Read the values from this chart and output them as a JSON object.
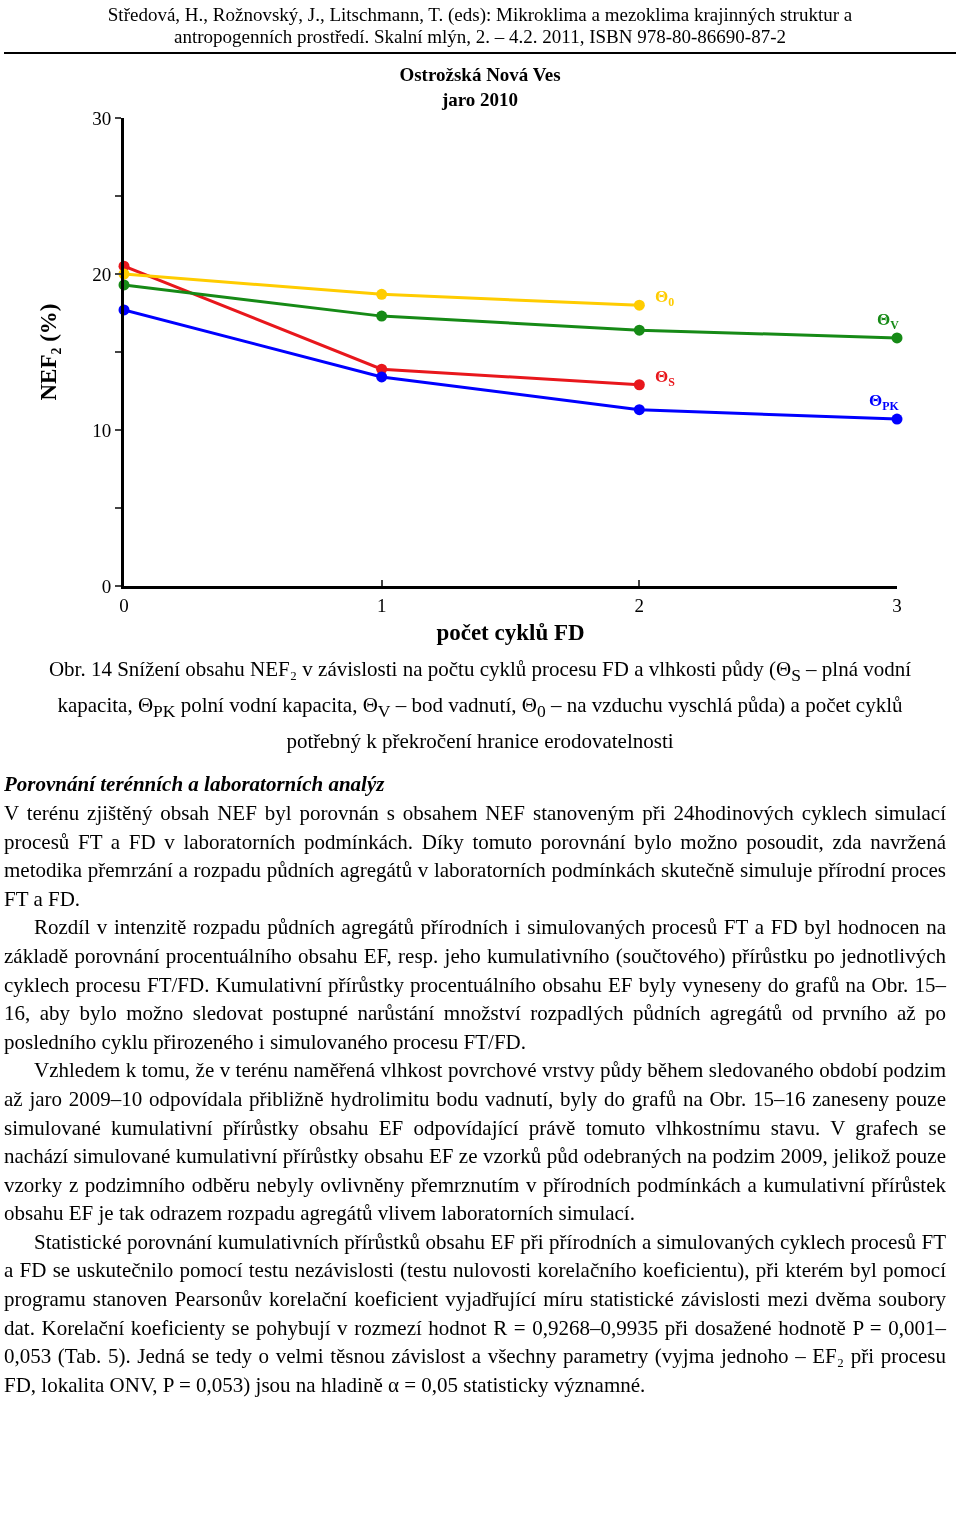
{
  "chart_data": {
    "type": "line",
    "title": "Ostrožská Nová Ves",
    "subtitle": "jaro 2010",
    "xlabel": "počet cyklů FD",
    "ylabel": "NEF₂ (%)",
    "x": [
      0,
      1,
      2,
      3
    ],
    "xlim": [
      0,
      3
    ],
    "xticks": [
      0,
      1,
      2,
      3
    ],
    "ylim": [
      0,
      30
    ],
    "yticks": [
      0,
      {
        "value": 5,
        "label": null
      },
      10,
      {
        "value": 15,
        "label": null
      },
      20,
      {
        "value": 25,
        "label": null
      },
      30
    ],
    "grid": false,
    "legend": false,
    "marker": "circle",
    "line_style": "solid",
    "series": [
      {
        "name": "Θ$_{S}$",
        "color": "#e8171c",
        "values": [
          20.5,
          13.9,
          12.9,
          null
        ]
      },
      {
        "name": "Θ$_{0}$",
        "color": "#ffcc00",
        "values": [
          20.0,
          18.7,
          18.0,
          null
        ]
      },
      {
        "name": "Θ$_{V}$",
        "color": "#168a16",
        "values": [
          19.3,
          17.3,
          16.4,
          15.9
        ]
      },
      {
        "name": "Θ$_{PK}$",
        "color": "#0000ff",
        "values": [
          17.7,
          13.4,
          11.3,
          10.7
        ]
      }
    ],
    "annotations": [
      "Středová, H., Rožnovský, J., Litschmann, T. (eds): Mikroklima a mezoklima krajinných struktur a antropogenních prostředí. Skalní mlýn, 2. – 4.2. 2011, ISBN 978-80-86690-87-2",
      "Obr. 14 Snížení obsahu NEF₂ v závislosti na počtu cyklů procesu FD a vlhkosti půdy (Θ$_{S}$ – plná vodní kapacita, Θ$_{PK}$ polní vodní kapacita, Θ$_{V}$ – bod vadnutí, Θ$_{0}$ – na vzduchu vyschlá půda) a počet cyklů potřebný k překročení hranice erodovatelnosti",
      "Porovnání terénních a laboratorních analýz",
      "V terénu zjištěný obsah NEF byl porovnán s obsahem NEF stanoveným při 24hodinových cyklech simulací procesů FT a FD v laboratorních podmínkách. Díky tomuto porovnání bylo možno posoudit, zda navržená metodika přemrzání a rozpadu půdních agregátů v laboratorních podmínkách skutečně simuluje přírodní proces FT a FD.",
      "Rozdíl v intenzitě rozpadu půdních agregátů přírodních i simulovaných procesů FT a FD byl hodnocen na základě porovnání procentuálního obsahu EF, resp. jeho kumulativního (součtového) přírůstku po jednotlivých cyklech procesu FT/FD. Kumulativní přírůstky procentuálního obsahu EF byly vyneseny do grafů na Obr. 15–16, aby bylo možno sledovat postupné narůstání množství rozpadlých půdních agregátů od prvního až po posledního cyklu přirozeného i simulovaného procesu FT/FD.",
      "Vzhledem k tomu, že v terénu naměřená vlhkost povrchové vrstvy půdy během sledovaného období podzim až jaro 2009–10 odpovídala přibližně hydrolimitu bodu vadnutí, byly do grafů na Obr. 15–16 zaneseny pouze simulované kumulativní přírůstky obsahu EF odpovídající právě tomuto vlhkostnímu stavu. V grafech se nachází simulované kumulativní přírůstky obsahu EF ze vzorků půd odebraných na podzim 2009, jelikož pouze vzorky z podzimního odběru nebyly ovlivněny přemrznutím v přírodních podmínkách a kumulativní přírůstek obsahu EF je tak odrazem rozpadu agregátů vlivem laboratorních simulací.",
      "Statistické porovnání kumulativních přírůstků obsahu EF při přírodních a simulovaných cyklech procesů FT a FD se uskutečnilo pomocí testu nezávislosti (testu nulovosti korelačního koeficientu), při kterém byl pomocí programu stanoven Pearsonův korelační koeficient vyjadřující míru statistické závislosti mezi dvěma soubory dat. Korelační koeficienty se pohybují v rozmezí hodnot R = 0,9268–0,9935 při dosažené hodnotě P = 0,001–0,053 (Tab. 5). Jedná se tedy o velmi těsnou závislost a všechny parametry (vyjma jednoho – EF₂ při procesu FD, lokalita ONV, P = 0,053) jsou na hladině α = 0,05 statisticky významné."
    ]
  }
}
